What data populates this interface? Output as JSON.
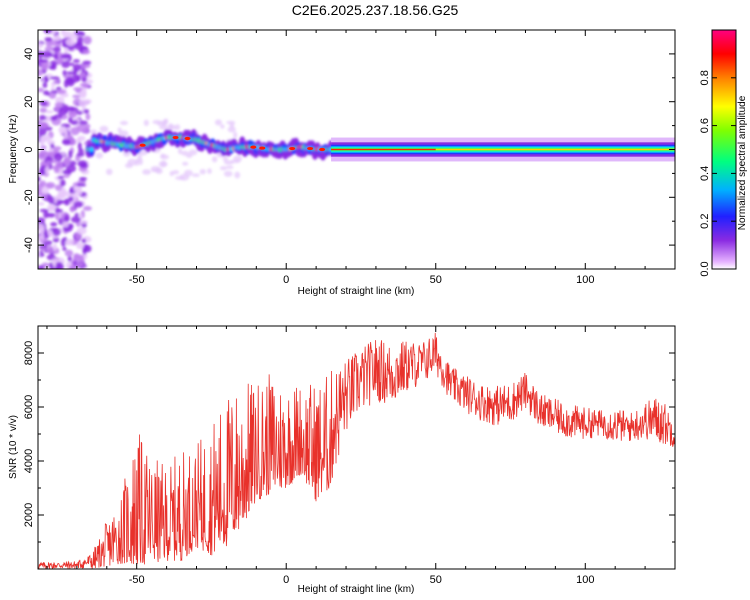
{
  "title": "C2E6.2025.237.18.56.G25",
  "colors": {
    "snr_line": "#e8312b",
    "axis": "#000000",
    "background": "#ffffff"
  },
  "chart_data": [
    {
      "type": "heatmap",
      "name": "spectrogram",
      "xlabel": "Height of straight line (km)",
      "ylabel": "Frequency (Hz)",
      "xlim": [
        -83,
        130
      ],
      "ylim": [
        -50,
        50
      ],
      "xticks": [
        -50,
        0,
        50,
        100
      ],
      "xtick_labels": [
        "-50",
        "0",
        "50",
        "100"
      ],
      "yticks": [
        -40,
        -20,
        0,
        20,
        40
      ],
      "ytick_labels": [
        "-40",
        "-20",
        "0",
        "20",
        "40"
      ],
      "colorbar": {
        "label": "Normalized spectral amplitude",
        "range": [
          0,
          1
        ],
        "ticks": [
          0.0,
          0.2,
          0.4,
          0.6,
          0.8
        ],
        "tick_labels": [
          "0.0",
          "0.2",
          "0.4",
          "0.6",
          "0.8"
        ]
      },
      "center_track": [
        [
          -65,
          4
        ],
        [
          -60,
          3
        ],
        [
          -55,
          2
        ],
        [
          -50,
          1
        ],
        [
          -45,
          3
        ],
        [
          -40,
          5
        ],
        [
          -35,
          5
        ],
        [
          -30,
          4
        ],
        [
          -25,
          2
        ],
        [
          -20,
          0
        ],
        [
          -15,
          1
        ],
        [
          -10,
          1
        ],
        [
          -5,
          0
        ],
        [
          0,
          0
        ],
        [
          5,
          1
        ],
        [
          10,
          0
        ],
        [
          15,
          0
        ],
        [
          20,
          0
        ],
        [
          50,
          0
        ],
        [
          100,
          0
        ],
        [
          130,
          0
        ]
      ]
    },
    {
      "type": "line",
      "name": "snr",
      "xlabel": "Height of straight line (km)",
      "ylabel": "SNR (10 * v/v)",
      "xlim": [
        -83,
        130
      ],
      "ylim": [
        0,
        9000
      ],
      "xticks": [
        -50,
        0,
        50,
        100
      ],
      "xtick_labels": [
        "-50",
        "0",
        "50",
        "100"
      ],
      "yticks": [
        2000,
        4000,
        6000,
        8000
      ],
      "ytick_labels": [
        "2000",
        "4000",
        "6000",
        "8000"
      ],
      "series": [
        {
          "name": "SNR",
          "envelope": [
            {
              "x": -83,
              "low": 0,
              "high": 250
            },
            {
              "x": -70,
              "low": 0,
              "high": 300
            },
            {
              "x": -65,
              "low": 0,
              "high": 600
            },
            {
              "x": -60,
              "low": 100,
              "high": 1800
            },
            {
              "x": -55,
              "low": 200,
              "high": 3000
            },
            {
              "x": -50,
              "low": 100,
              "high": 5200
            },
            {
              "x": -45,
              "low": 200,
              "high": 4200
            },
            {
              "x": -40,
              "low": 300,
              "high": 3800
            },
            {
              "x": -35,
              "low": 300,
              "high": 4500
            },
            {
              "x": -30,
              "low": 800,
              "high": 4600
            },
            {
              "x": -25,
              "low": 500,
              "high": 5500
            },
            {
              "x": -20,
              "low": 800,
              "high": 6500
            },
            {
              "x": -15,
              "low": 1500,
              "high": 7000
            },
            {
              "x": -10,
              "low": 2500,
              "high": 7000
            },
            {
              "x": -5,
              "low": 2800,
              "high": 7300
            },
            {
              "x": 0,
              "low": 3000,
              "high": 7000
            },
            {
              "x": 5,
              "low": 3500,
              "high": 7000
            },
            {
              "x": 10,
              "low": 2500,
              "high": 7000
            },
            {
              "x": 15,
              "low": 3000,
              "high": 7400
            },
            {
              "x": 20,
              "low": 5000,
              "high": 7800
            },
            {
              "x": 25,
              "low": 5800,
              "high": 8200
            },
            {
              "x": 30,
              "low": 6200,
              "high": 8600
            },
            {
              "x": 35,
              "low": 6000,
              "high": 8400
            },
            {
              "x": 40,
              "low": 6500,
              "high": 8500
            },
            {
              "x": 45,
              "low": 6800,
              "high": 8400
            },
            {
              "x": 50,
              "low": 7200,
              "high": 8800
            },
            {
              "x": 55,
              "low": 6200,
              "high": 7500
            },
            {
              "x": 60,
              "low": 5800,
              "high": 7200
            },
            {
              "x": 65,
              "low": 5500,
              "high": 6900
            },
            {
              "x": 70,
              "low": 5300,
              "high": 6800
            },
            {
              "x": 75,
              "low": 5400,
              "high": 6900
            },
            {
              "x": 80,
              "low": 5900,
              "high": 7300
            },
            {
              "x": 85,
              "low": 5200,
              "high": 6500
            },
            {
              "x": 90,
              "low": 5000,
              "high": 6300
            },
            {
              "x": 95,
              "low": 4800,
              "high": 6100
            },
            {
              "x": 100,
              "low": 4800,
              "high": 6000
            },
            {
              "x": 105,
              "low": 4900,
              "high": 5900
            },
            {
              "x": 110,
              "low": 4700,
              "high": 6000
            },
            {
              "x": 115,
              "low": 4700,
              "high": 5800
            },
            {
              "x": 120,
              "low": 4800,
              "high": 6200
            },
            {
              "x": 125,
              "low": 4600,
              "high": 6500
            },
            {
              "x": 130,
              "low": 4500,
              "high": 5500
            }
          ]
        }
      ]
    }
  ]
}
